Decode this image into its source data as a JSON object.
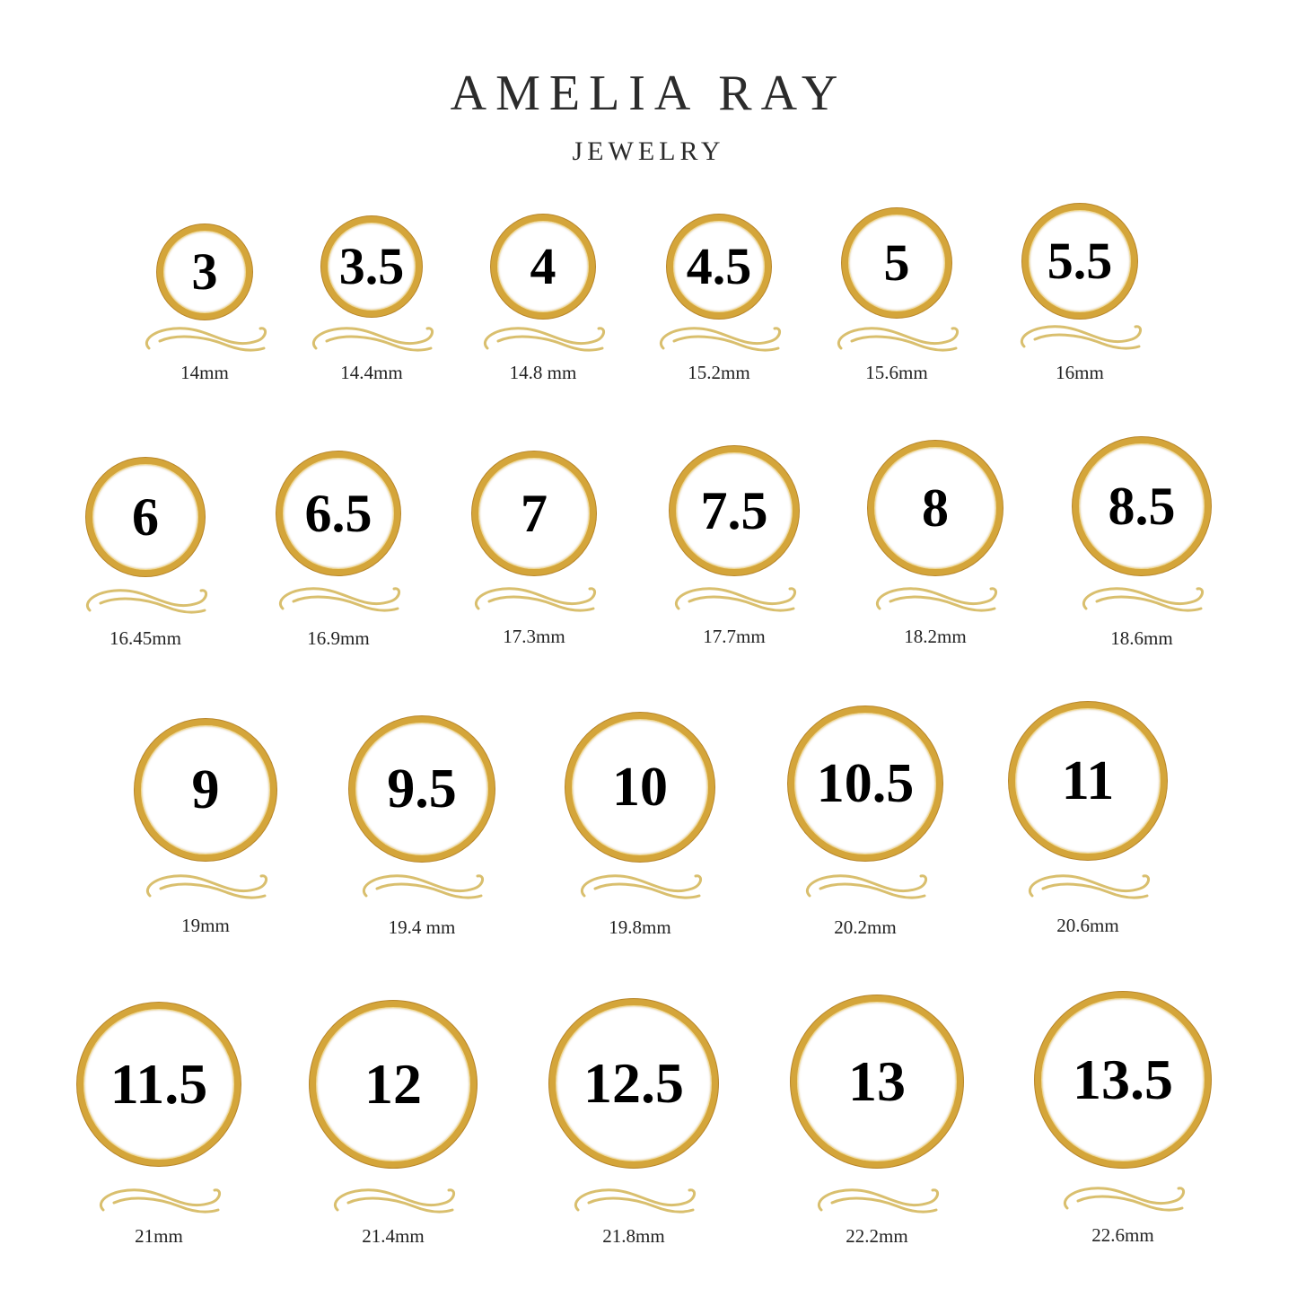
{
  "brand": {
    "name": "AMELIA RAY",
    "subtitle": "JEWELRY"
  },
  "colors": {
    "gold": "#d4a53a",
    "swirl": "#d9bf6e",
    "text": "#000000"
  },
  "sizes": [
    {
      "size": "3",
      "diameter": "14mm"
    },
    {
      "size": "3.5",
      "diameter": "14.4mm"
    },
    {
      "size": "4",
      "diameter": "14.8 mm"
    },
    {
      "size": "4.5",
      "diameter": "15.2mm"
    },
    {
      "size": "5",
      "diameter": "15.6mm"
    },
    {
      "size": "5.5",
      "diameter": "16mm"
    },
    {
      "size": "6",
      "diameter": "16.45mm"
    },
    {
      "size": "6.5",
      "diameter": "16.9mm"
    },
    {
      "size": "7",
      "diameter": "17.3mm"
    },
    {
      "size": "7.5",
      "diameter": "17.7mm"
    },
    {
      "size": "8",
      "diameter": "18.2mm"
    },
    {
      "size": "8.5",
      "diameter": "18.6mm"
    },
    {
      "size": "9",
      "diameter": "19mm"
    },
    {
      "size": "9.5",
      "diameter": "19.4 mm"
    },
    {
      "size": "10",
      "diameter": "19.8mm"
    },
    {
      "size": "10.5",
      "diameter": "20.2mm"
    },
    {
      "size": "11",
      "diameter": "20.6mm"
    },
    {
      "size": "11.5",
      "diameter": "21mm"
    },
    {
      "size": "12",
      "diameter": "21.4mm"
    },
    {
      "size": "12.5",
      "diameter": "21.8mm"
    },
    {
      "size": "13",
      "diameter": "22.2mm"
    },
    {
      "size": "13.5",
      "diameter": "22.6mm"
    }
  ]
}
